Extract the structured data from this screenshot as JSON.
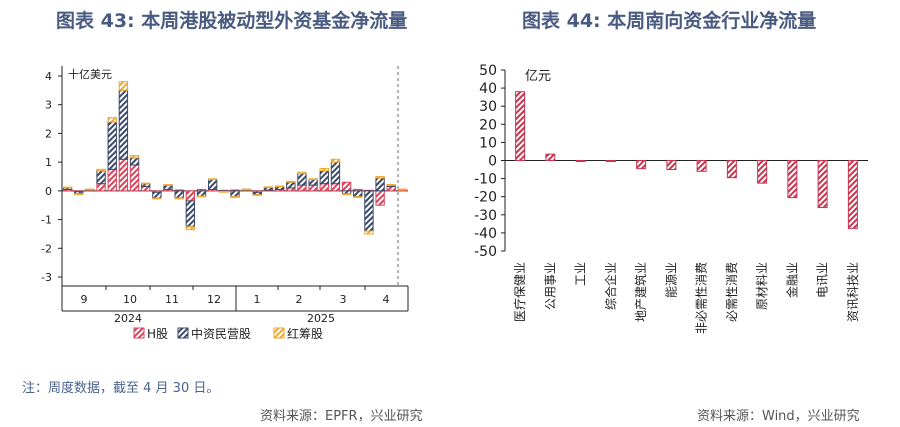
{
  "titles": {
    "left": "图表 43: 本周港股被动型外资基金净流量",
    "right": "图表 44: 本周南向资金行业净流量"
  },
  "footer": {
    "note": "注：周度数据，截至 4 月 30 日。",
    "source_left": "资料来源：EPFR，兴业研究",
    "source_right": "资料来源：Wind，兴业研究"
  },
  "colors": {
    "h_shares": "#d9435b",
    "chinese_private": "#3a4a6b",
    "red_chips": "#f0a830",
    "industry_bar": "#c8344e",
    "title": "#4a5b82"
  },
  "chart_data": [
    {
      "type": "bar",
      "stacked": true,
      "title": "本周港股被动型外资基金净流量",
      "unit": "十亿美元",
      "ylim": [
        -3,
        4
      ],
      "yticks": [
        -3,
        -2,
        -1,
        0,
        1,
        2,
        3,
        4
      ],
      "month_labels": [
        "9",
        "10",
        "11",
        "12",
        "1",
        "2",
        "3",
        "4"
      ],
      "year_labels": [
        "2024",
        "2025"
      ],
      "legend": [
        "H股",
        "中资民营股",
        "红筹股"
      ],
      "series": [
        {
          "name": "H股",
          "values": [
            0.05,
            -0.03,
            0.02,
            0.25,
            0.75,
            1.1,
            0.9,
            0.15,
            -0.05,
            0.05,
            0.03,
            -0.35,
            0.05,
            0.05,
            0.02,
            0.03,
            0.02,
            -0.05,
            0.03,
            0.05,
            0.1,
            0.2,
            0.2,
            0.25,
            0.25,
            0.3,
            0.05,
            0.02,
            -0.5,
            0.15,
            0.05
          ]
        },
        {
          "name": "中资民营股",
          "values": [
            0.06,
            -0.07,
            0.03,
            0.45,
            1.65,
            2.4,
            0.25,
            0.1,
            -0.2,
            0.15,
            -0.25,
            -0.9,
            -0.18,
            0.35,
            -0.02,
            -0.2,
            0.03,
            -0.08,
            0.1,
            0.1,
            0.2,
            0.4,
            0.2,
            0.45,
            0.75,
            -0.1,
            -0.2,
            -1.4,
            0.45,
            0.05,
            0.0
          ]
        },
        {
          "name": "红筹股",
          "values": [
            0.02,
            -0.01,
            0.01,
            0.05,
            0.15,
            0.3,
            0.08,
            0.02,
            -0.02,
            0.02,
            -0.02,
            -0.1,
            -0.02,
            0.02,
            -0.01,
            -0.02,
            0.01,
            -0.01,
            0.01,
            0.02,
            0.03,
            0.05,
            0.02,
            0.08,
            0.1,
            -0.02,
            -0.02,
            -0.1,
            0.05,
            0.02,
            0.01
          ]
        }
      ]
    },
    {
      "type": "bar",
      "title": "本周南向资金行业净流量",
      "unit": "亿元",
      "ylim": [
        -50,
        50
      ],
      "yticks": [
        -50,
        -40,
        -30,
        -20,
        -10,
        0,
        10,
        20,
        30,
        40,
        50
      ],
      "categories": [
        "医疗保健业",
        "公用事业",
        "工业",
        "综合企业",
        "地产建筑业",
        "能源业",
        "非必需性消费",
        "必需性消费",
        "原材料业",
        "金融业",
        "电讯业",
        "资讯科技业"
      ],
      "values": [
        38,
        3.5,
        -0.5,
        -0.5,
        -4.5,
        -5,
        -6,
        -9.5,
        -12.5,
        -20.5,
        -26,
        -37.5
      ]
    }
  ]
}
